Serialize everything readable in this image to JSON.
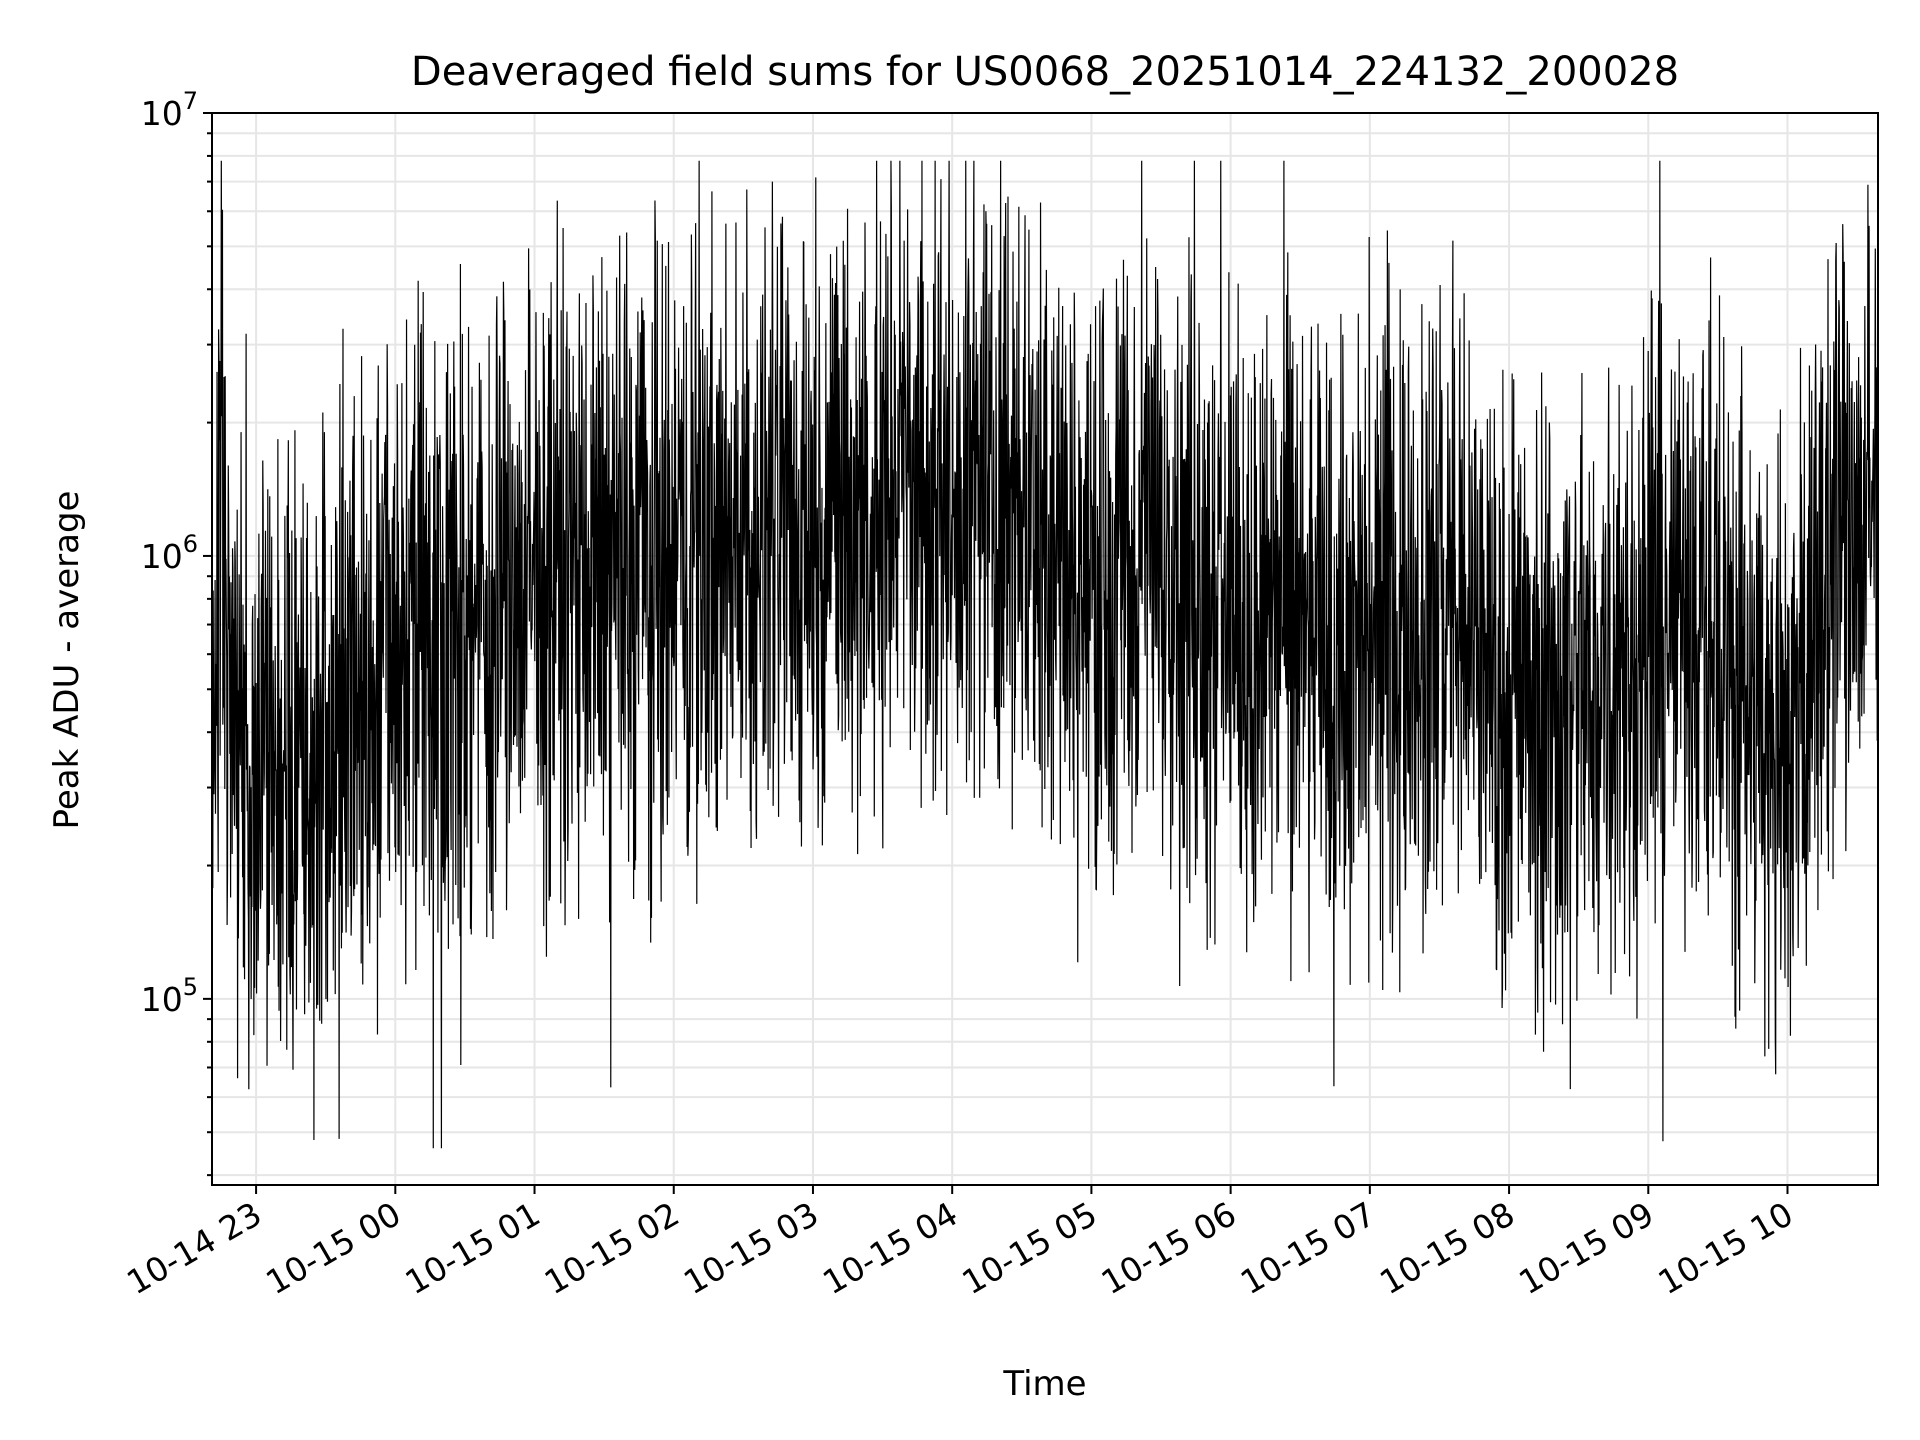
{
  "chart_data": {
    "type": "line",
    "title": "Deaveraged field sums for US0068_20251014_224132_200028",
    "xlabel": "Time",
    "ylabel": "Peak ADU - average",
    "yscale": "log",
    "ylim": [
      38000,
      10000000
    ],
    "xlim": [
      "2025-10-14 22:41",
      "2025-10-15 10:39"
    ],
    "grid": true,
    "legend": "none",
    "x_tick_labels": [
      "10-14 23",
      "10-15 00",
      "10-15 01",
      "10-15 02",
      "10-15 03",
      "10-15 04",
      "10-15 05",
      "10-15 06",
      "10-15 07",
      "10-15 08",
      "10-15 09",
      "10-15 10"
    ],
    "x_tick_times": [
      "2025-10-14 23:00",
      "2025-10-15 00:00",
      "2025-10-15 01:00",
      "2025-10-15 02:00",
      "2025-10-15 03:00",
      "2025-10-15 04:00",
      "2025-10-15 05:00",
      "2025-10-15 06:00",
      "2025-10-15 07:00",
      "2025-10-15 08:00",
      "2025-10-15 09:00",
      "2025-10-15 10:00"
    ],
    "y_tick_labels": [
      {
        "value": 100000,
        "base": "10",
        "exp": "5"
      },
      {
        "value": 1000000,
        "base": "10",
        "exp": "6"
      },
      {
        "value": 10000000,
        "base": "10",
        "exp": "7"
      }
    ],
    "line_color": "#000000",
    "grid_color": "#e6e6e6",
    "series": [
      {
        "x": [
          "2025-10-14 22:41",
          "2025-10-14 22:45",
          "2025-10-14 22:50",
          "2025-10-14 22:55",
          "2025-10-14 23:00",
          "2025-10-14 23:10",
          "2025-10-14 23:20",
          "2025-10-14 23:30",
          "2025-10-14 23:40",
          "2025-10-14 23:50",
          "2025-10-15 00:00",
          "2025-10-15 00:15",
          "2025-10-15 00:30",
          "2025-10-15 00:45",
          "2025-10-15 01:00",
          "2025-10-15 01:15",
          "2025-10-15 01:30",
          "2025-10-15 01:45",
          "2025-10-15 02:00",
          "2025-10-15 02:15",
          "2025-10-15 02:30",
          "2025-10-15 02:45",
          "2025-10-15 03:00",
          "2025-10-15 03:15",
          "2025-10-15 03:30",
          "2025-10-15 03:45",
          "2025-10-15 04:00",
          "2025-10-15 04:15",
          "2025-10-15 04:30",
          "2025-10-15 04:45",
          "2025-10-15 05:00",
          "2025-10-15 05:15",
          "2025-10-15 05:30",
          "2025-10-15 05:45",
          "2025-10-15 06:00",
          "2025-10-15 06:15",
          "2025-10-15 06:30",
          "2025-10-15 06:45",
          "2025-10-15 07:00",
          "2025-10-15 07:15",
          "2025-10-15 07:30",
          "2025-10-15 07:45",
          "2025-10-15 08:00",
          "2025-10-15 08:15",
          "2025-10-15 08:30",
          "2025-10-15 08:45",
          "2025-10-15 09:00",
          "2025-10-15 09:15",
          "2025-10-15 09:30",
          "2025-10-15 09:45",
          "2025-10-15 10:00",
          "2025-10-15 10:15",
          "2025-10-15 10:30",
          "2025-10-15 10:39"
        ],
        "y": [
          600000,
          1000000,
          500000,
          400000,
          380000,
          300000,
          350000,
          420000,
          500000,
          550000,
          620000,
          700000,
          650000,
          720000,
          850000,
          900000,
          950000,
          980000,
          1000000,
          950000,
          1050000,
          1200000,
          1100000,
          1150000,
          1300000,
          1500000,
          1400000,
          1600000,
          1300000,
          1000000,
          900000,
          950000,
          1100000,
          900000,
          750000,
          700000,
          650000,
          600000,
          650000,
          700000,
          750000,
          700000,
          500000,
          450000,
          480000,
          550000,
          700000,
          750000,
          650000,
          450000,
          400000,
          850000,
          1100000,
          1200000
        ]
      }
    ]
  }
}
